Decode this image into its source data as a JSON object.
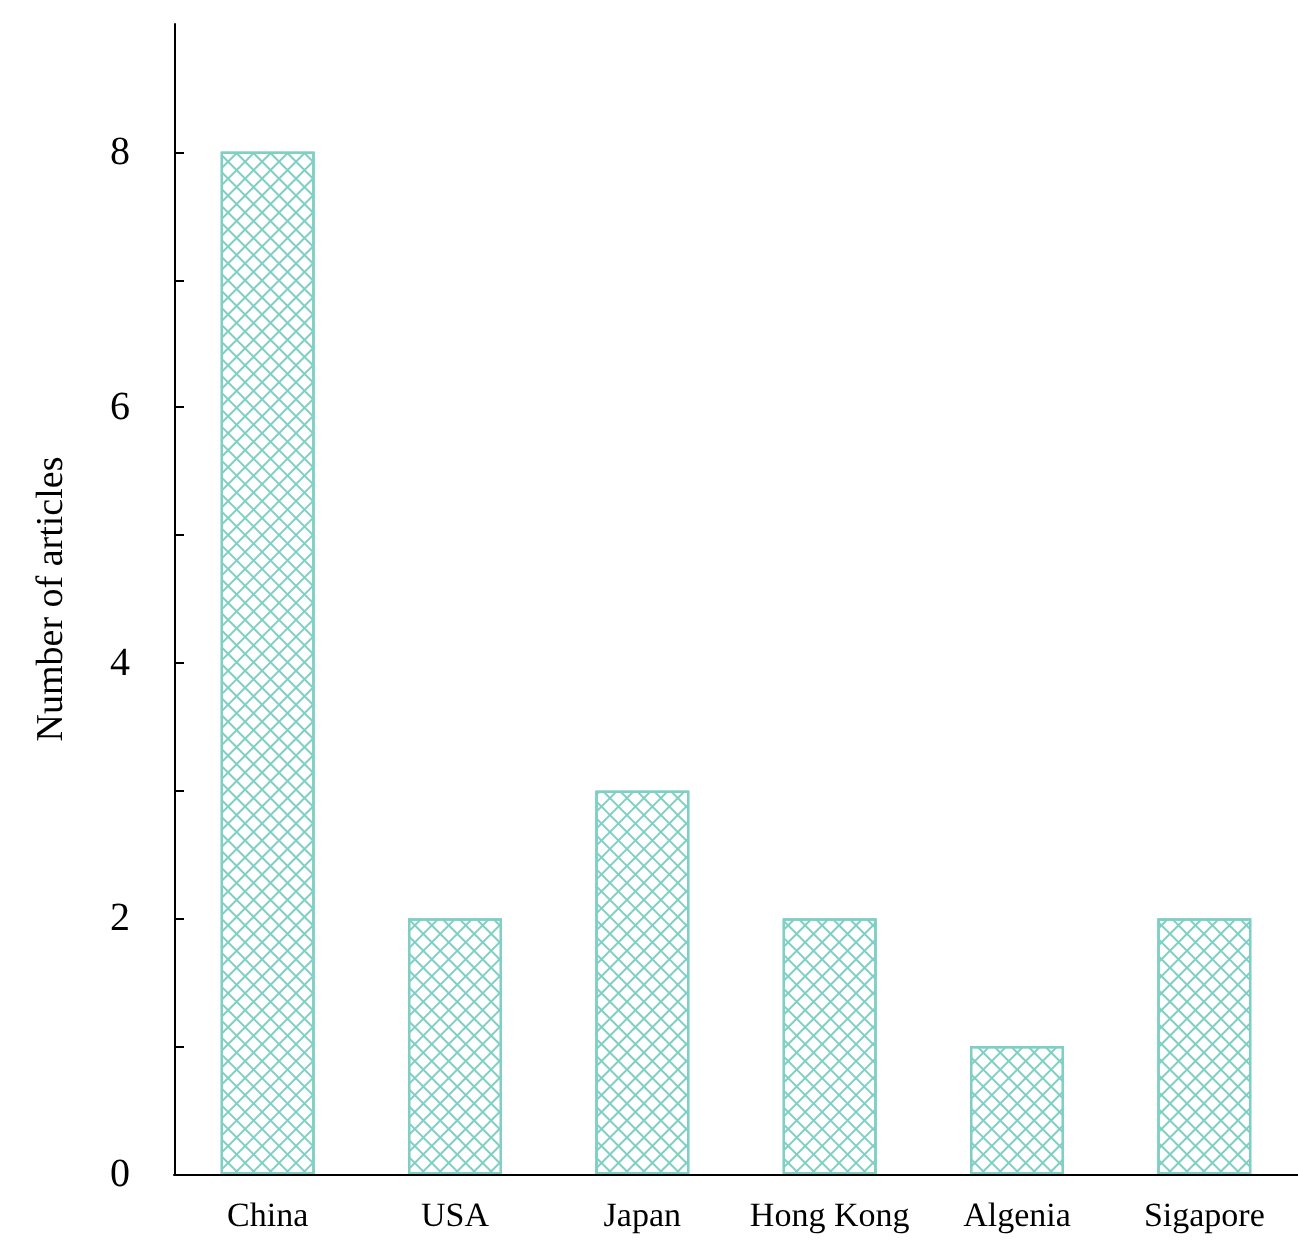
{
  "chart_data": {
    "type": "bar",
    "ylabel": "Number of articles",
    "categories": [
      "China",
      "USA",
      "Japan",
      "Hong Kong",
      "Algenia",
      "Sigapore"
    ],
    "values": [
      8,
      2,
      3,
      2,
      1,
      2
    ],
    "color": "#7fcfc4",
    "ylim": [
      0,
      9
    ],
    "yticks": [
      0,
      {
        "value": 1,
        "label": null
      },
      2,
      {
        "value": 3,
        "label": null
      },
      4,
      {
        "value": 5,
        "label": null
      },
      6,
      {
        "value": 7,
        "label": null
      },
      8
    ],
    "grid": false
  }
}
